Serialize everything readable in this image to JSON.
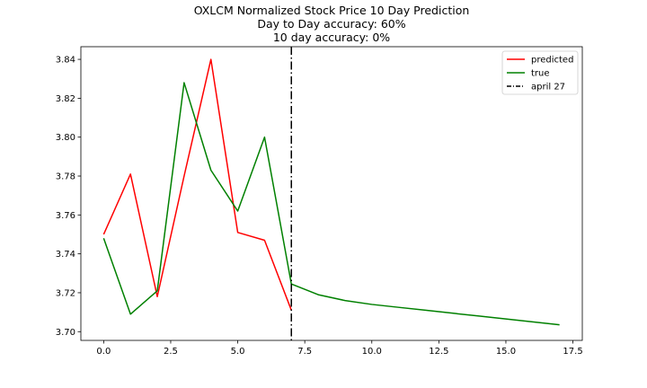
{
  "chart_data": {
    "type": "line",
    "title": "OXLCM Normalized Stock Price 10 Day Prediction",
    "subtitle": [
      "Day to Day accuracy: 60%",
      "10 day accuracy: 0%"
    ],
    "xlabel": "",
    "ylabel": "",
    "xlim": [
      -0.85,
      17.85
    ],
    "ylim": [
      3.6955,
      3.8465
    ],
    "xticks": [
      0.0,
      2.5,
      5.0,
      7.5,
      10.0,
      12.5,
      15.0,
      17.5
    ],
    "xtick_labels": [
      "0.0",
      "2.5",
      "5.0",
      "7.5",
      "10.0",
      "12.5",
      "15.0",
      "17.5"
    ],
    "yticks": [
      3.7,
      3.72,
      3.74,
      3.76,
      3.78,
      3.8,
      3.82,
      3.84
    ],
    "ytick_labels": [
      "3.70",
      "3.72",
      "3.74",
      "3.76",
      "3.78",
      "3.80",
      "3.82",
      "3.84"
    ],
    "grid": false,
    "legend_position": "top-right",
    "series": [
      {
        "name": "predicted",
        "color": "#ff0000",
        "style": "solid",
        "x": [
          0,
          1,
          2,
          3,
          4,
          5,
          6,
          7
        ],
        "y": [
          3.75,
          3.781,
          3.718,
          3.78,
          3.84,
          3.751,
          3.747,
          3.711
        ]
      },
      {
        "name": "true",
        "color": "#008000",
        "style": "solid",
        "x": [
          0,
          1,
          2,
          3,
          4,
          5,
          6,
          7,
          8,
          9,
          10,
          11,
          12,
          13,
          14,
          15,
          16,
          17
        ],
        "y": [
          3.748,
          3.709,
          3.721,
          3.828,
          3.783,
          3.762,
          3.8,
          3.7245,
          3.719,
          3.716,
          3.714,
          3.7125,
          3.711,
          3.7095,
          3.708,
          3.7065,
          3.705,
          3.7035
        ]
      }
    ],
    "vline": {
      "name": "april 27",
      "x": 7,
      "color": "#000000",
      "style": "dashdot"
    }
  }
}
